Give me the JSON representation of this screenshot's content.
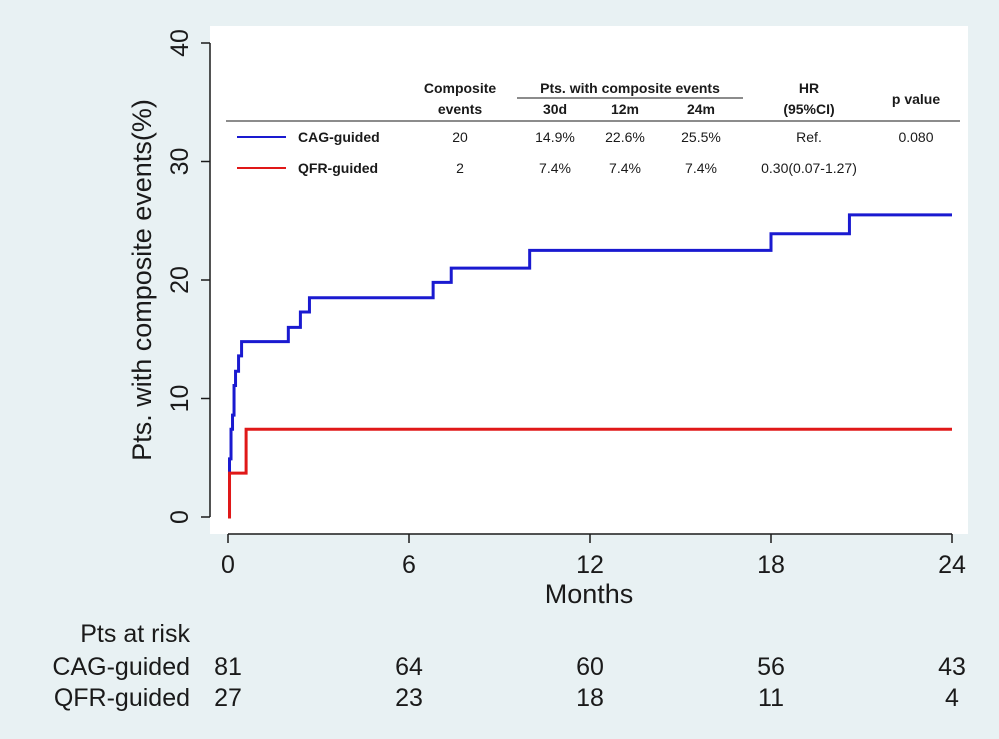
{
  "chart_data": {
    "type": "line",
    "step": true,
    "xlabel": "Months",
    "ylabel": "Pts. with composite events(%)",
    "xlim": [
      0,
      24
    ],
    "ylim": [
      0,
      40
    ],
    "xticks": [
      0,
      6,
      12,
      18,
      24
    ],
    "yticks": [
      0,
      10,
      20,
      30,
      40
    ],
    "colors": {
      "CAG-guided": "#1a1ad0",
      "QFR-guided": "#e01818"
    },
    "series": [
      {
        "name": "CAG-guided",
        "points": [
          [
            0,
            0
          ],
          [
            0.05,
            4.9
          ],
          [
            0.1,
            7.4
          ],
          [
            0.15,
            8.6
          ],
          [
            0.2,
            11.1
          ],
          [
            0.25,
            12.3
          ],
          [
            0.35,
            13.6
          ],
          [
            0.45,
            14.8
          ],
          [
            2.0,
            16.0
          ],
          [
            2.4,
            17.3
          ],
          [
            2.7,
            18.5
          ],
          [
            6.8,
            19.8
          ],
          [
            7.4,
            21.0
          ],
          [
            10.0,
            22.5
          ],
          [
            18.0,
            23.9
          ],
          [
            20.6,
            25.5
          ],
          [
            24,
            25.5
          ]
        ]
      },
      {
        "name": "QFR-guided",
        "points": [
          [
            0,
            0
          ],
          [
            0.05,
            3.7
          ],
          [
            0.6,
            7.4
          ],
          [
            24,
            7.4
          ]
        ]
      }
    ],
    "table": {
      "headers": {
        "composite_line1": "Composite",
        "composite_line2": "events",
        "pts_group": "Pts. with composite events",
        "h30": "30d",
        "h12": "12m",
        "h24": "24m",
        "hr_line1": "HR",
        "hr_line2": "(95%CI)",
        "pval": "p value"
      },
      "rows": [
        {
          "name": "CAG-guided",
          "events": "20",
          "d30": "14.9%",
          "m12": "22.6%",
          "m24": "25.5%",
          "hr": "Ref.",
          "p": "0.080"
        },
        {
          "name": "QFR-guided",
          "events": "2",
          "d30": "7.4%",
          "m12": "7.4%",
          "m24": "7.4%",
          "hr": "0.30(0.07-1.27)",
          "p": ""
        }
      ]
    },
    "risk_table": {
      "title": "Pts at risk",
      "rows": [
        {
          "name": "CAG-guided",
          "values": [
            "81",
            "64",
            "60",
            "56",
            "43"
          ]
        },
        {
          "name": "QFR-guided",
          "values": [
            "27",
            "23",
            "18",
            "11",
            "4"
          ]
        }
      ]
    }
  }
}
